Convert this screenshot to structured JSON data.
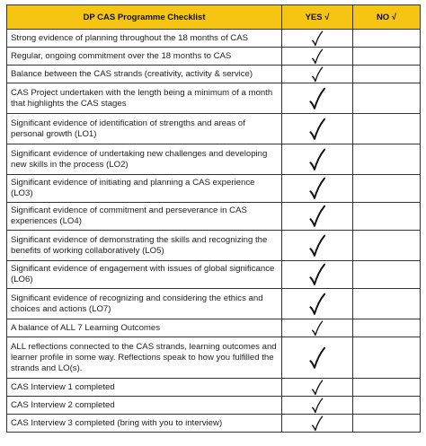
{
  "header": {
    "title": "DP CAS Programme Checklist",
    "yes": "YES √",
    "no": "NO √"
  },
  "rows": [
    {
      "text": "Strong evidence of planning throughout the 18 months of CAS",
      "yes": true,
      "no": false
    },
    {
      "text": "Regular, ongoing commitment over the 18 months to CAS",
      "yes": true,
      "no": false
    },
    {
      "text": "Balance between the CAS strands (creativity, activity & service)",
      "yes": true,
      "no": false
    },
    {
      "text": "CAS Project undertaken with the length being a minimum of a month that highlights the CAS stages",
      "yes": true,
      "no": false
    },
    {
      "text": "Significant evidence of identification of strengths and areas of personal growth (LO1)",
      "yes": true,
      "no": false
    },
    {
      "text": "Significant evidence of undertaking new challenges and developing new skills in the process (LO2)",
      "yes": true,
      "no": false
    },
    {
      "text": "Significant evidence of initiating and planning a CAS experience (LO3)",
      "yes": true,
      "no": false
    },
    {
      "text": "Significant evidence of commitment and perseverance in CAS experiences (LO4)",
      "yes": true,
      "no": false
    },
    {
      "text": "Significant evidence of demonstrating the skills and recognizing the benefits of working collaboratively (LO5)",
      "yes": true,
      "no": false
    },
    {
      "text": "Significant evidence of engagement with issues of global significance (LO6)",
      "yes": true,
      "no": false
    },
    {
      "text": "Significant evidence of recognizing and considering the ethics and choices and actions (LO7)",
      "yes": true,
      "no": false
    },
    {
      "text": "A balance of ALL 7 Learning Outcomes",
      "yes": true,
      "no": false
    },
    {
      "text": "ALL reflections connected to the CAS strands, learning outcomes and learner profile in some way. Reflections speak to how you fulfilled the strands and LO(s).",
      "yes": true,
      "no": false
    },
    {
      "text": "CAS Interview 1 completed",
      "yes": true,
      "no": false
    },
    {
      "text": "CAS Interview 2 completed",
      "yes": true,
      "no": false
    },
    {
      "text": "CAS Interview 3 completed (bring with you to interview)",
      "yes": true,
      "no": false
    }
  ]
}
